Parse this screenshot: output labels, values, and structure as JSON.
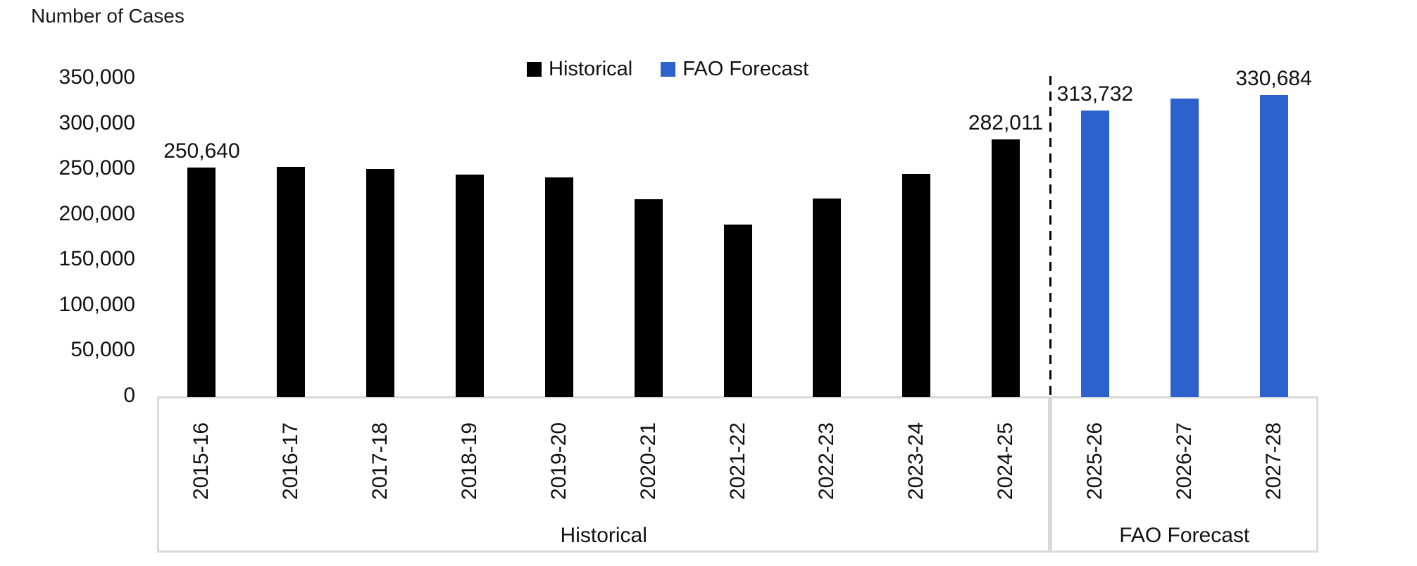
{
  "title": "Number of Cases",
  "legend": {
    "items": [
      {
        "label": "Historical",
        "color": "#000000"
      },
      {
        "label": "FAO Forecast",
        "color": "#2D62CD"
      }
    ]
  },
  "chart_data": {
    "type": "bar",
    "title": "Number of Cases",
    "ylabel": "Number of Cases",
    "ylim": [
      0,
      350000
    ],
    "ytick_step": 50000,
    "grid": false,
    "legend_position": "top-center",
    "yticks": [
      {
        "value": 350000,
        "label": "350,000"
      },
      {
        "value": 300000,
        "label": "300,000"
      },
      {
        "value": 250000,
        "label": "250,000"
      },
      {
        "value": 200000,
        "label": "200,000"
      },
      {
        "value": 150000,
        "label": "150,000"
      },
      {
        "value": 100000,
        "label": "100,000"
      },
      {
        "value": 50000,
        "label": "50,000"
      },
      {
        "value": 0,
        "label": "0"
      }
    ],
    "categories": [
      "2015-16",
      "2016-17",
      "2017-18",
      "2018-19",
      "2019-20",
      "2020-21",
      "2021-22",
      "2022-23",
      "2023-24",
      "2024-25",
      "2025-26",
      "2026-27",
      "2027-28"
    ],
    "series": [
      {
        "name": "Historical",
        "color": "#000000"
      },
      {
        "name": "FAO Forecast",
        "color": "#2D62CD"
      }
    ],
    "bars": [
      {
        "category": "2015-16",
        "series": "Historical",
        "value": 250640,
        "label": "250,640"
      },
      {
        "category": "2016-17",
        "series": "Historical",
        "value": 252000
      },
      {
        "category": "2017-18",
        "series": "Historical",
        "value": 249000
      },
      {
        "category": "2018-19",
        "series": "Historical",
        "value": 243000
      },
      {
        "category": "2019-20",
        "series": "Historical",
        "value": 240000
      },
      {
        "category": "2020-21",
        "series": "Historical",
        "value": 216000
      },
      {
        "category": "2021-22",
        "series": "Historical",
        "value": 188000
      },
      {
        "category": "2022-23",
        "series": "Historical",
        "value": 217000
      },
      {
        "category": "2023-24",
        "series": "Historical",
        "value": 244000
      },
      {
        "category": "2024-25",
        "series": "Historical",
        "value": 282011,
        "label": "282,011"
      },
      {
        "category": "2025-26",
        "series": "FAO Forecast",
        "value": 313732,
        "label": "313,732"
      },
      {
        "category": "2026-27",
        "series": "FAO Forecast",
        "value": 327000
      },
      {
        "category": "2027-28",
        "series": "FAO Forecast",
        "value": 330684,
        "label": "330,684"
      }
    ],
    "groups": [
      {
        "label": "Historical",
        "from": 0,
        "to": 9
      },
      {
        "label": "FAO Forecast",
        "from": 10,
        "to": 12
      }
    ],
    "divider_after_category": "2024-25",
    "axis_frame_color": "#D9D9D9"
  }
}
